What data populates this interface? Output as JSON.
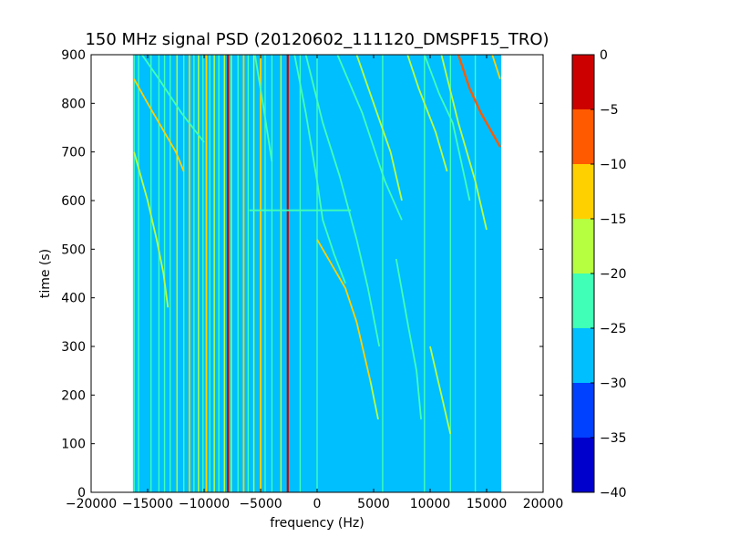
{
  "chart_data": {
    "type": "heatmap",
    "title": "150 MHz signal PSD (20120602_111120_DMSPF15_TRO)",
    "xlabel": "frequency (Hz)",
    "ylabel": "time (s)",
    "xlim": [
      -20000,
      20000
    ],
    "ylim": [
      0,
      900
    ],
    "x_ticks": [
      -20000,
      -15000,
      -10000,
      -5000,
      0,
      5000,
      10000,
      15000,
      20000
    ],
    "y_ticks": [
      0,
      100,
      200,
      300,
      400,
      500,
      600,
      700,
      800,
      900
    ],
    "data_extent": {
      "x": [
        -16300,
        16300
      ],
      "y": [
        0,
        900
      ]
    },
    "background_level_color": "#00bfff",
    "colorbar": {
      "range": [
        -40,
        0
      ],
      "ticks": [
        0,
        -5,
        -10,
        -15,
        -20,
        -25,
        -30,
        -35,
        -40
      ],
      "levels": [
        {
          "range": [
            -40,
            -35
          ],
          "color": "#0000cd"
        },
        {
          "range": [
            -35,
            -30
          ],
          "color": "#0040ff"
        },
        {
          "range": [
            -30,
            -25
          ],
          "color": "#00bfff"
        },
        {
          "range": [
            -25,
            -20
          ],
          "color": "#40ffb6"
        },
        {
          "range": [
            -20,
            -15
          ],
          "color": "#b6ff40"
        },
        {
          "range": [
            -15,
            -10
          ],
          "color": "#ffd000"
        },
        {
          "range": [
            -10,
            -5
          ],
          "color": "#ff5a00"
        },
        {
          "range": [
            -5,
            0
          ],
          "color": "#cd0000"
        }
      ]
    },
    "vertical_lines": [
      {
        "f": -16200,
        "level": -22
      },
      {
        "f": -15800,
        "level": -22
      },
      {
        "f": -14700,
        "level": -22
      },
      {
        "f": -14000,
        "level": -22
      },
      {
        "f": -13500,
        "level": -22
      },
      {
        "f": -13000,
        "level": -22
      },
      {
        "f": -12400,
        "level": -18
      },
      {
        "f": -11800,
        "level": -22
      },
      {
        "f": -11300,
        "level": -12
      },
      {
        "f": -10900,
        "level": -22
      },
      {
        "f": -10500,
        "level": -18
      },
      {
        "f": -10100,
        "level": -22
      },
      {
        "f": -9800,
        "level": -12
      },
      {
        "f": -9500,
        "level": -22
      },
      {
        "f": -9100,
        "level": -18
      },
      {
        "f": -8700,
        "level": -22
      },
      {
        "f": -8200,
        "level": -18
      },
      {
        "f": -7900,
        "level": -2
      },
      {
        "f": -7600,
        "level": -18
      },
      {
        "f": -7000,
        "level": -22
      },
      {
        "f": -6500,
        "level": -12
      },
      {
        "f": -6100,
        "level": -22
      },
      {
        "f": -5600,
        "level": -18
      },
      {
        "f": -5000,
        "level": -12
      },
      {
        "f": -4600,
        "level": -22
      },
      {
        "f": -4000,
        "level": -22
      },
      {
        "f": -3200,
        "level": -18
      },
      {
        "f": -2600,
        "level": -2
      },
      {
        "f": -1500,
        "level": -22
      },
      {
        "f": 0,
        "level": -22
      },
      {
        "f": 5800,
        "level": -22
      },
      {
        "f": 9500,
        "level": -22
      },
      {
        "f": 11800,
        "level": -22
      },
      {
        "f": 14000,
        "level": -22
      }
    ],
    "tracks": [
      {
        "level": -12,
        "points": [
          [
            -16200,
            850
          ],
          [
            -15000,
            800
          ],
          [
            -13500,
            740
          ],
          [
            -12500,
            700
          ],
          [
            -11800,
            660
          ]
        ]
      },
      {
        "level": -18,
        "points": [
          [
            -16200,
            700
          ],
          [
            -15000,
            600
          ],
          [
            -14200,
            520
          ],
          [
            -13600,
            450
          ],
          [
            -13200,
            380
          ]
        ]
      },
      {
        "level": -22,
        "points": [
          [
            -15500,
            900
          ],
          [
            -14000,
            850
          ],
          [
            -12000,
            780
          ],
          [
            -10000,
            720
          ]
        ]
      },
      {
        "level": -22,
        "points": [
          [
            -5500,
            900
          ],
          [
            -4800,
            800
          ],
          [
            -4000,
            680
          ]
        ]
      },
      {
        "level": -22,
        "points": [
          [
            -2000,
            900
          ],
          [
            -1000,
            780
          ],
          [
            0,
            640
          ],
          [
            500,
            560
          ],
          [
            1500,
            490
          ],
          [
            2500,
            430
          ]
        ]
      },
      {
        "level": -12,
        "points": [
          [
            0,
            520
          ],
          [
            1500,
            460
          ],
          [
            2500,
            420
          ],
          [
            3500,
            350
          ],
          [
            4200,
            280
          ],
          [
            4700,
            230
          ]
        ]
      },
      {
        "level": -18,
        "points": [
          [
            4700,
            230
          ],
          [
            5400,
            150
          ]
        ]
      },
      {
        "level": -22,
        "points": [
          [
            -1000,
            900
          ],
          [
            500,
            760
          ],
          [
            2000,
            650
          ],
          [
            3500,
            520
          ],
          [
            4500,
            420
          ],
          [
            5500,
            300
          ]
        ]
      },
      {
        "level": -22,
        "points": [
          [
            1800,
            900
          ],
          [
            4000,
            780
          ],
          [
            6000,
            640
          ],
          [
            7500,
            560
          ]
        ]
      },
      {
        "level": -18,
        "points": [
          [
            3500,
            900
          ],
          [
            5000,
            800
          ],
          [
            6500,
            700
          ],
          [
            7500,
            600
          ]
        ]
      },
      {
        "level": -18,
        "points": [
          [
            8000,
            900
          ],
          [
            9000,
            830
          ],
          [
            10500,
            740
          ],
          [
            11500,
            660
          ]
        ]
      },
      {
        "level": -22,
        "points": [
          [
            9500,
            900
          ],
          [
            10800,
            820
          ],
          [
            12000,
            760
          ],
          [
            13500,
            600
          ]
        ]
      },
      {
        "level": -7,
        "points": [
          [
            12500,
            900
          ],
          [
            13500,
            830
          ],
          [
            14500,
            780
          ],
          [
            16200,
            710
          ]
        ]
      },
      {
        "level": -12,
        "points": [
          [
            15500,
            900
          ],
          [
            16200,
            850
          ]
        ]
      },
      {
        "level": -18,
        "points": [
          [
            11000,
            900
          ],
          [
            12500,
            760
          ],
          [
            14000,
            640
          ],
          [
            15000,
            540
          ]
        ]
      },
      {
        "level": -22,
        "points": [
          [
            7000,
            480
          ],
          [
            8000,
            350
          ],
          [
            8800,
            250
          ],
          [
            9200,
            150
          ]
        ]
      },
      {
        "level": -18,
        "points": [
          [
            10000,
            300
          ],
          [
            11000,
            200
          ],
          [
            11800,
            120
          ]
        ]
      },
      {
        "level": -22,
        "points": [
          [
            -6000,
            580
          ],
          [
            3000,
            580
          ]
        ]
      }
    ]
  }
}
